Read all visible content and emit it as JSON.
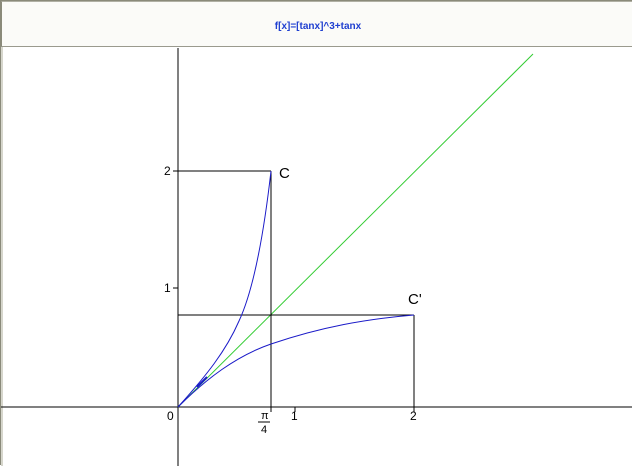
{
  "window": {
    "title": "f[x]=[tanx]^3+tanx"
  },
  "diagram": {
    "axis_x_ticks": {
      "origin": "0",
      "one": "1",
      "two": "2"
    },
    "axis_y_ticks": {
      "one": "1",
      "two": "2"
    },
    "pi_label": {
      "numerator": "π",
      "denominator": "4"
    },
    "point_C": "C",
    "point_C_prime": "C'",
    "colors": {
      "axes": "#000000",
      "curve": "#1a1ac8",
      "identity_line": "#33cc33",
      "title": "#1f3fd0"
    }
  }
}
